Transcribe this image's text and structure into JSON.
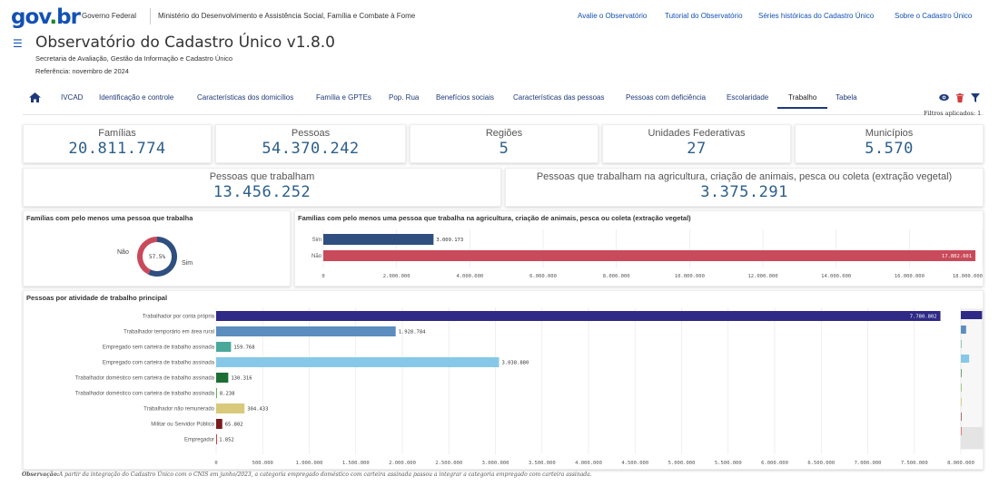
{
  "gov": {
    "logo_go": "go",
    "logo_v": "v",
    "logo_dot": ".",
    "logo_br": "br",
    "governo_federal": "Governo Federal",
    "ministry": "Ministério do Desenvolvimento e Assistência Social, Família e Combate à Fome",
    "links": [
      "Avalie o Observatório",
      "Tutorial do Observatório",
      "Séries históricas do Cadastro Único",
      "Sobre o Cadastro Único"
    ]
  },
  "header": {
    "title": "Observatório do Cadastro Único v1.8.0",
    "secretariat": "Secretaria de Avaliação, Gestão da Informação e Cadastro Único",
    "reference": "Referência: novembro de 2024"
  },
  "nav": {
    "tabs": [
      "IVCAD",
      "Identificação e controle",
      "Características dos domicílios",
      "Família e GPTEs",
      "Pop. Rua",
      "Benefícios sociais",
      "Características das pessoas",
      "Pessoas com deficiência",
      "Escolaridade",
      "Trabalho",
      "Tabela"
    ],
    "active_tab": "Trabalho",
    "filters_applied": "Filtros aplicados: 1",
    "icons": [
      "home-icon",
      "eye-icon",
      "trash-icon",
      "filter-icon"
    ]
  },
  "kpis": {
    "familias": {
      "label": "Famílias",
      "value": "20.811.774"
    },
    "pessoas": {
      "label": "Pessoas",
      "value": "54.370.242"
    },
    "regioes": {
      "label": "Regiões",
      "value": "5"
    },
    "ufs": {
      "label": "Unidades Federativas",
      "value": "27"
    },
    "municipios": {
      "label": "Municípios",
      "value": "5.570"
    },
    "trabalham": {
      "label": "Pessoas que trabalham",
      "value": "13.456.252"
    },
    "agricultura": {
      "label": "Pessoas que trabalham na agricultura, criação de animais, pesca ou coleta (extração vegetal)",
      "value": "3.375.291"
    }
  },
  "colors": {
    "accent": "#1351b4",
    "kpi_value": "#2c5f8a",
    "sim": "#2e4f7f",
    "nao": "#c94a5a"
  },
  "chart_data": [
    {
      "type": "pie",
      "title": "Famílias com pelo menos uma pessoa que trabalha",
      "categories": [
        "Sim",
        "Não"
      ],
      "values": [
        57.5,
        42.5
      ],
      "center_label": "57.5%"
    },
    {
      "type": "bar",
      "orientation": "horizontal",
      "title": "Famílias com pelo menos uma pessoa que trabalha na agricultura, criação de animais, pesca ou coleta (extração vegetal)",
      "categories": [
        "Sim",
        "Não"
      ],
      "values": [
        3009173,
        17802601
      ],
      "value_labels": [
        "3.009.173",
        "17.802.601"
      ],
      "xlim": [
        0,
        18000000
      ],
      "ticks": [
        "0",
        "2.000.000",
        "4.000.000",
        "6.000.000",
        "8.000.000",
        "10.000.000",
        "12.000.000",
        "14.000.000",
        "16.000.000",
        "18.000.000"
      ]
    },
    {
      "type": "bar",
      "orientation": "horizontal",
      "title": "Pessoas por atividade de trabalho principal",
      "categories": [
        "Trabalhador por conta própria",
        "Trabalhador temporário em área rural",
        "Empregado sem carteira de trabalho assinada",
        "Empregado com carteira de trabalho assinada",
        "Trabalhador doméstico sem carteira de trabalho assinada",
        "Trabalhador doméstico com carteira de trabalho assinada",
        "Trabalhador não remunerado",
        "Militar ou Servidor Público",
        "Empregador"
      ],
      "values": [
        7780802,
        1928784,
        159768,
        3038880,
        130316,
        8238,
        304433,
        65802,
        1852
      ],
      "value_labels": [
        "7.780.802",
        "1.928.784",
        "159.768",
        "3.038.880",
        "130.316",
        "8.238",
        "304.433",
        "65.802",
        "1.852"
      ],
      "bar_colors": [
        "#2e2a86",
        "#5b8dbf",
        "#4aa89a",
        "#87c8e8",
        "#1c6e35",
        "#6ab04c",
        "#d9c97a",
        "#7a1d1d",
        "#d43c3c"
      ],
      "xlim": [
        0,
        8000000
      ],
      "ticks": [
        "0",
        "500.000",
        "1.000.000",
        "1.500.000",
        "2.000.000",
        "2.500.000",
        "3.000.000",
        "3.500.000",
        "4.000.000",
        "4.500.000",
        "5.000.000",
        "5.500.000",
        "6.000.000",
        "6.500.000",
        "7.000.000",
        "7.500.000",
        "8.000.000"
      ]
    }
  ],
  "observation": {
    "label": "Observação:",
    "text": "A partir da integração do Cadastro Único com o CNIS em junho/2023, a categoria empregado doméstico com carteira assinada passou a integrar a categoria empregado com carteira assinada."
  }
}
